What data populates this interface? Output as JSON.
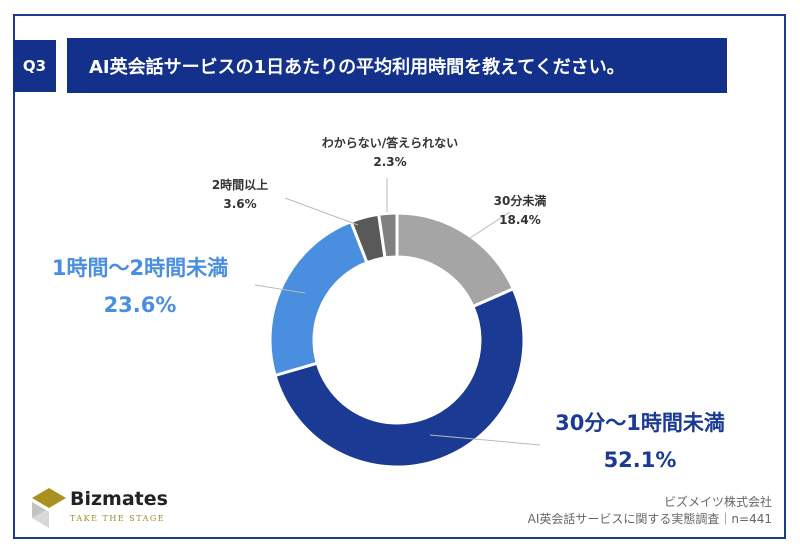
{
  "header": {
    "q_label": "Q3",
    "title": "AI英会話サービスの1日あたりの平均利用時間を教えてください。"
  },
  "chart_data": {
    "type": "pie",
    "donut": true,
    "title": "AI英会話サービスの1日あたりの平均利用時間を教えてください。",
    "categories": [
      "30分未満",
      "30分〜1時間未満",
      "1時間〜2時間未満",
      "2時間以上",
      "わからない/答えられない"
    ],
    "values": [
      18.4,
      52.1,
      23.6,
      3.6,
      2.3
    ],
    "labels": [
      "18.4%",
      "52.1%",
      "23.6%",
      "3.6%",
      "2.3%"
    ],
    "colors": [
      "#a5a5a5",
      "#1b3a94",
      "#4a8ee0",
      "#595959",
      "#808080"
    ]
  },
  "footer": {
    "brand": "Bizmates",
    "tagline": "TAKE THE STAGE",
    "company": "ビズメイツ株式会社",
    "source": "AI英会話サービスに関する実態調査｜n=441"
  }
}
